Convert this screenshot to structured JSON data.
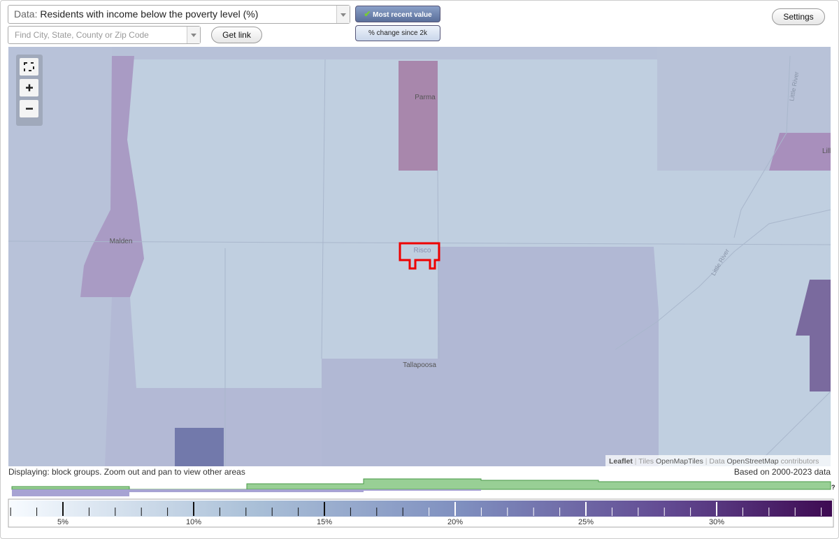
{
  "controls": {
    "data_prefix": "Data:",
    "data_selection": "Residents with income below the poverty level (%)",
    "search_placeholder": "Find City, State, County or Zip Code",
    "get_link": "Get link",
    "most_recent": "Most recent value",
    "percent_change": "% change since 2k",
    "settings": "Settings"
  },
  "map": {
    "labels": [
      "Parma",
      "Malden",
      "Risco",
      "Tallapoosa",
      "Little River",
      "Little River",
      "Lill"
    ],
    "attribution": [
      "Leaflet",
      "|",
      "Tiles",
      "OpenMapTiles",
      "|",
      "Data",
      "OpenStreetMap",
      "contributors"
    ]
  },
  "footer": {
    "displaying": "Displaying: block groups. Zoom out and pan to view other areas",
    "based_on": "Based on 2000-2023 data",
    "help": "?"
  },
  "legend": {
    "labels": [
      "5%",
      "10%",
      "15%",
      "20%",
      "25%",
      "30%"
    ]
  }
}
